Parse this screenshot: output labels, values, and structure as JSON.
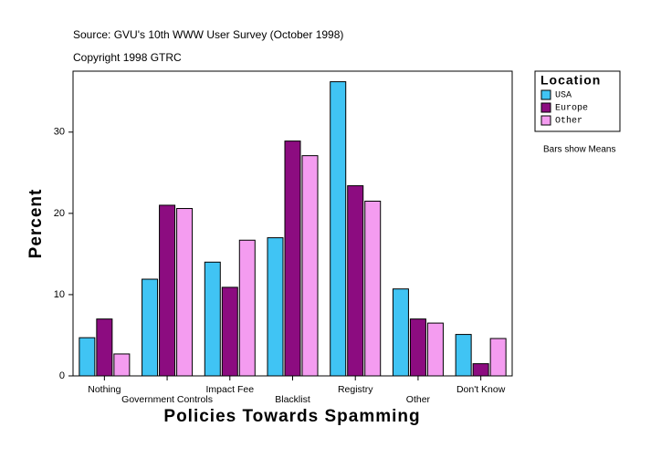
{
  "chart_data": {
    "type": "bar",
    "title": "Source: GVU's 10th WWW User Survey (October 1998)",
    "subtitle": "Copyright 1998 GTRC",
    "x_label": "Policies Towards Spamming",
    "y_label": "Percent",
    "legend_title": "Location",
    "note": "Bars show Means",
    "categories": [
      "Nothing",
      "Government Controls",
      "Impact Fee",
      "Blacklist",
      "Registry",
      "Other",
      "Don't Know"
    ],
    "series": [
      {
        "name": "USA",
        "color": "#40c4f4",
        "values": [
          4.7,
          11.9,
          14.0,
          17.0,
          36.2,
          10.7,
          5.1
        ]
      },
      {
        "name": "Europe",
        "color": "#8c0c80",
        "values": [
          7.0,
          21.0,
          10.9,
          28.9,
          23.4,
          7.0,
          1.5
        ]
      },
      {
        "name": "Other",
        "color": "#f49cf0",
        "values": [
          2.7,
          20.6,
          16.7,
          27.1,
          21.5,
          6.5,
          4.6
        ]
      }
    ],
    "ylim": [
      0,
      37.5
    ],
    "yticks": [
      0,
      10,
      20,
      30
    ],
    "grid": false
  }
}
